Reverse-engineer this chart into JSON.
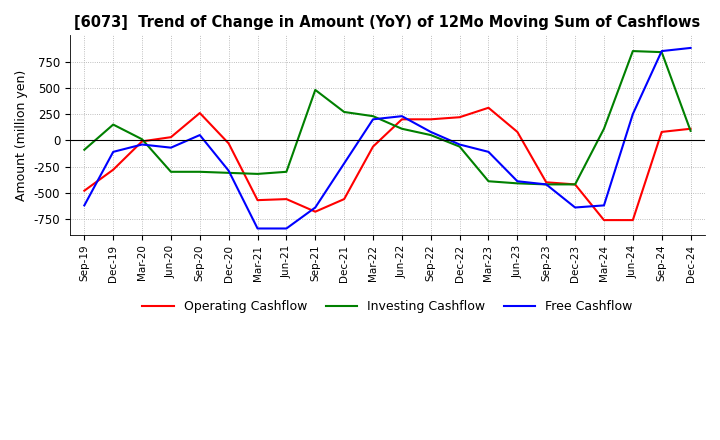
{
  "title": "[6073]  Trend of Change in Amount (YoY) of 12Mo Moving Sum of Cashflows",
  "ylabel": "Amount (million yen)",
  "x_labels": [
    "Sep-19",
    "Dec-19",
    "Mar-20",
    "Jun-20",
    "Sep-20",
    "Dec-20",
    "Mar-21",
    "Jun-21",
    "Sep-21",
    "Dec-21",
    "Mar-22",
    "Jun-22",
    "Sep-22",
    "Dec-22",
    "Mar-23",
    "Jun-23",
    "Sep-23",
    "Dec-23",
    "Mar-24",
    "Jun-24",
    "Sep-24",
    "Dec-24"
  ],
  "operating": [
    -480,
    -280,
    -10,
    30,
    260,
    -30,
    -570,
    -560,
    -680,
    -560,
    -60,
    200,
    200,
    220,
    310,
    80,
    -400,
    -420,
    -760,
    -760,
    80,
    110
  ],
  "investing": [
    -90,
    150,
    10,
    -300,
    -300,
    -310,
    -320,
    -300,
    480,
    270,
    230,
    110,
    50,
    -60,
    -390,
    -410,
    -420,
    -420,
    110,
    850,
    840,
    90
  ],
  "free": [
    -620,
    -110,
    -40,
    -70,
    50,
    -290,
    -840,
    -840,
    -640,
    -220,
    200,
    230,
    80,
    -40,
    -110,
    -390,
    -420,
    -640,
    -620,
    250,
    850,
    880
  ],
  "ylim": [
    -900,
    1000
  ],
  "yticks": [
    -750,
    -500,
    -250,
    0,
    250,
    500,
    750
  ],
  "colors": {
    "operating": "#ff0000",
    "investing": "#008000",
    "free": "#0000ff"
  },
  "legend_labels": [
    "Operating Cashflow",
    "Investing Cashflow",
    "Free Cashflow"
  ]
}
